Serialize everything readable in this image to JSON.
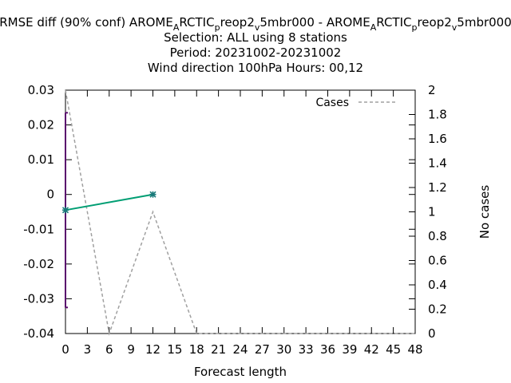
{
  "chart_data": {
    "type": "line",
    "title_lines": [
      "RMSE diff (90% conf) AROME_ARCTIC_preop2_v5mbr000 - AROME_ARCTIC_preop2_v5mbr000",
      "Selection: ALL using     8 stations",
      "Period: 20231002-20231002",
      "Wind direction 100hPa   Hours:  00,12"
    ],
    "title_parts": [
      {
        "text": "RMSE diff (90% conf) AROME",
        "sub": false
      },
      {
        "text": "A",
        "sub": true
      },
      {
        "text": "RCTIC",
        "sub": false
      },
      {
        "text": "p",
        "sub": true
      },
      {
        "text": "reop2",
        "sub": false
      },
      {
        "text": "v",
        "sub": true
      },
      {
        "text": "5mbr000 - AROME",
        "sub": false
      },
      {
        "text": "A",
        "sub": true
      },
      {
        "text": "RCTIC",
        "sub": false
      },
      {
        "text": "p",
        "sub": true
      },
      {
        "text": "reop2",
        "sub": false
      },
      {
        "text": "v",
        "sub": true
      },
      {
        "text": "5mbr000",
        "sub": false
      }
    ],
    "xlabel": "Forecast length",
    "ylabel": "",
    "y2label": "No cases",
    "xlim": [
      0,
      48
    ],
    "ylim": [
      -0.04,
      0.03
    ],
    "y2lim": [
      0,
      2
    ],
    "xticks": [
      0,
      3,
      6,
      9,
      12,
      15,
      18,
      21,
      24,
      27,
      30,
      33,
      36,
      39,
      42,
      45,
      48
    ],
    "yticks": [
      "0.03",
      "0.02",
      "0.01",
      "0",
      "-0.01",
      "-0.02",
      "-0.03",
      "-0.04"
    ],
    "yticks_values": [
      0.03,
      0.02,
      0.01,
      0,
      -0.01,
      -0.02,
      -0.03,
      -0.04
    ],
    "y2ticks": [
      "2",
      "1.8",
      "1.6",
      "1.4",
      "1.2",
      "1",
      "0.8",
      "0.6",
      "0.4",
      "0.2",
      "0"
    ],
    "y2ticks_values": [
      2,
      1.8,
      1.6,
      1.4,
      1.2,
      1,
      0.8,
      0.6,
      0.4,
      0.2,
      0
    ],
    "series": [
      {
        "color": "#009e73",
        "x": [
          0,
          12
        ],
        "y": [
          -0.0045,
          0.0
        ]
      }
    ],
    "error_bars": [
      {
        "x": 0,
        "low": -0.0325,
        "high": 0.0235,
        "color": "#5a0a6e"
      }
    ],
    "cases": {
      "name": "Cases",
      "color": "#a0a0a0",
      "x": [
        0,
        6,
        12,
        18,
        24,
        30,
        36,
        42,
        48
      ],
      "y": [
        2,
        0,
        1,
        0,
        0,
        0,
        0,
        0,
        0
      ]
    },
    "legend_position": "top-right",
    "grid": false
  }
}
